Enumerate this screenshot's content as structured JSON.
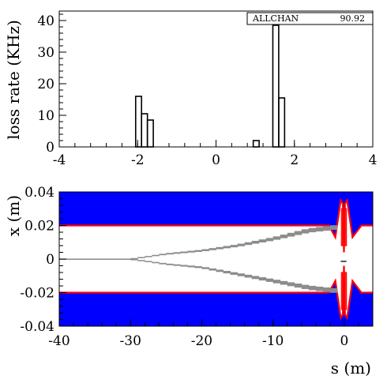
{
  "colors": {
    "axis": "#000000",
    "histogram_line": "#000000",
    "aperture_fill": "#0000ff",
    "aperture_edge": "#ff0000",
    "beam_track": "#8c8c8c",
    "background": "#ffffff"
  },
  "chart_data": [
    {
      "type": "histogram",
      "title": "",
      "xlabel": "",
      "ylabel": "loss rate (KHz)",
      "xlim": [
        -4,
        4
      ],
      "ylim": [
        0,
        43
      ],
      "xticks": [
        -4,
        -2,
        0,
        2,
        4
      ],
      "yticks": [
        0,
        10,
        20,
        30,
        40
      ],
      "xtick_labels": [
        "-4",
        "-2",
        "0",
        "2",
        "4"
      ],
      "ytick_labels": [
        "0",
        "10",
        "20",
        "30",
        "40"
      ],
      "bin_width": 0.15,
      "bins": [
        {
          "x0": -2.05,
          "x1": -1.9,
          "value": 16
        },
        {
          "x0": -1.9,
          "x1": -1.75,
          "value": 10.5
        },
        {
          "x0": -1.75,
          "x1": -1.6,
          "value": 8.5
        },
        {
          "x0": 0.95,
          "x1": 1.1,
          "value": 2
        },
        {
          "x0": 1.45,
          "x1": 1.6,
          "value": 38.5
        },
        {
          "x0": 1.6,
          "x1": 1.75,
          "value": 15.5
        }
      ],
      "stat_box": {
        "name": "ALLCHAN",
        "value": "90.92"
      },
      "grid": false
    },
    {
      "type": "aperture-track",
      "title": "",
      "xlabel": "s (m)",
      "ylabel": "x (m)",
      "xlim": [
        -40,
        4
      ],
      "ylim": [
        -0.04,
        0.04
      ],
      "xticks": [
        -40,
        -30,
        -20,
        -10,
        0
      ],
      "yticks": [
        -0.04,
        -0.02,
        0,
        0.02,
        0.04
      ],
      "xtick_labels": [
        "-40",
        "-30",
        "-20",
        "-10",
        "0"
      ],
      "ytick_labels": [
        "-0.04",
        "-0.02",
        "0",
        "0.02",
        "0.04"
      ],
      "aperture_half_width": 0.02,
      "final_focus": {
        "s_center": -0.05,
        "s_halfwidth": 1.2,
        "peak": 0.035,
        "s_end": 2.4
      },
      "tracks": [
        {
          "name": "upper",
          "s": [
            -40,
            -30,
            -25,
            -20,
            -15,
            -10,
            -5,
            -1
          ],
          "x": [
            0,
            0,
            0.003,
            0.005,
            0.008,
            0.012,
            0.017,
            0.019
          ]
        },
        {
          "name": "lower",
          "s": [
            -40,
            -30,
            -25,
            -20,
            -15,
            -10,
            -5,
            -1
          ],
          "x": [
            0,
            0,
            -0.003,
            -0.005,
            -0.009,
            -0.013,
            -0.017,
            -0.019
          ]
        }
      ],
      "grid": false
    }
  ]
}
